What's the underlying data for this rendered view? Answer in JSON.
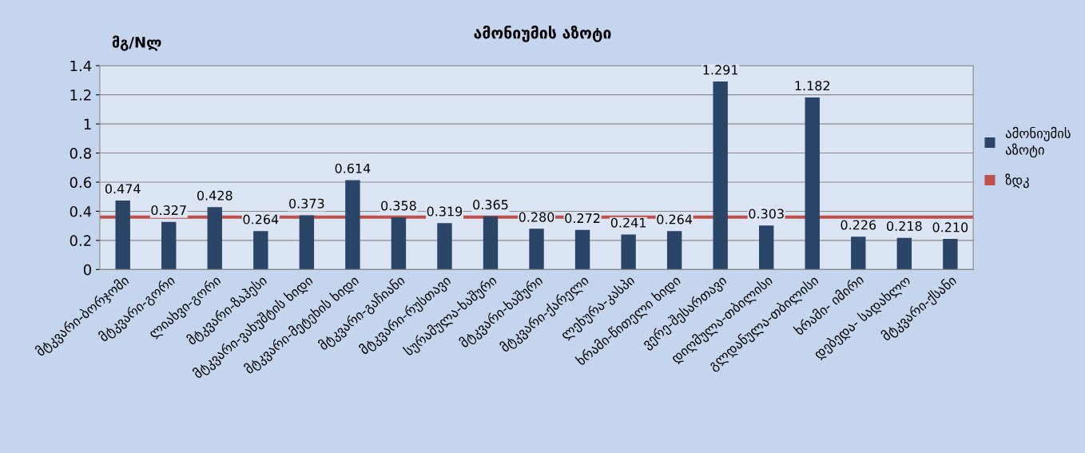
{
  "chart_data": {
    "type": "bar",
    "title": "ამონიუმის აზოტი",
    "ylabel": "მგ/Nლ",
    "categories": [
      "მტკვარი-ბორჯომი",
      "მტკვარი-გორი",
      "ლიახვი-გორი",
      "მტკვარი-ზაჰესი",
      "მტკვარი-ვახუშტის ხიდი",
      "მტკვარი-მეტეხის ხიდი",
      "მტკვარი-გაჩიანი",
      "მტკვარი-რუსთავი",
      "სურამულა-ხაშური",
      "მტკვარი-ხაშური",
      "მტკვარი-ქარელი",
      "ლეხურა-კასპი",
      "ხრამი-წითელი ხიდი",
      "ვერე-შესართავი",
      "დიღმულა-თბილისი",
      "გლდანულა-თბილისი",
      "ხრამი- იმირი",
      "დებედა- სადახლო",
      "მტკვარი-ქსანი"
    ],
    "series": [
      {
        "name": "ამონიუმის აზოტი",
        "color": "#2b4569",
        "values": [
          0.474,
          0.327,
          0.428,
          0.264,
          0.373,
          0.614,
          0.358,
          0.319,
          0.365,
          0.28,
          0.272,
          0.241,
          0.264,
          1.291,
          0.303,
          1.182,
          0.226,
          0.218,
          0.21
        ],
        "value_labels": [
          "0.474",
          "0.327",
          "0.428",
          "0.264",
          "0.373",
          "0.614",
          "0.358",
          "0.319",
          "0.365",
          "0.280",
          "0.272",
          "0.241",
          "0.264",
          "1.291",
          "0.303",
          "1.182",
          "0.226",
          "0.218",
          "0.210"
        ]
      }
    ],
    "ref_lines": [
      {
        "axis": "y",
        "value": 0.36,
        "label": "ზდკ",
        "color": "#c0504d",
        "line_style": "solid"
      }
    ],
    "ylim": [
      0,
      1.4
    ],
    "yticks": [
      0,
      0.2,
      0.4,
      0.6,
      0.8,
      1,
      1.2,
      1.4
    ],
    "grid": "y",
    "legend": "right"
  }
}
